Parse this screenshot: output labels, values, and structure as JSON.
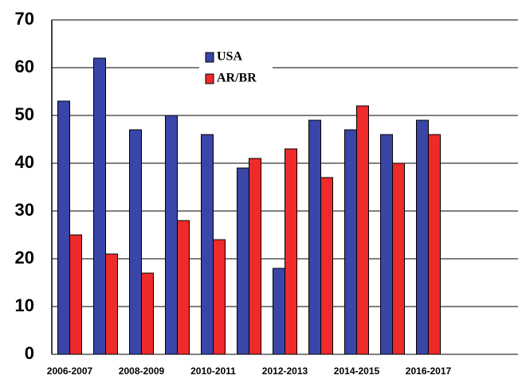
{
  "chart_data": {
    "type": "bar",
    "categories": [
      "2006-2007",
      null,
      "2008-2009",
      null,
      "2010-2011",
      null,
      "2012-2013",
      null,
      "2014-2015",
      null,
      "2016-2017",
      null,
      null
    ],
    "series": [
      {
        "name": "USA",
        "color": "#3a45a8",
        "values": [
          53,
          62,
          47,
          50,
          46,
          39,
          18,
          49,
          47,
          46,
          49,
          null,
          null
        ]
      },
      {
        "name": "AR/BR",
        "color": "#ee2a2a",
        "values": [
          25,
          21,
          17,
          28,
          24,
          41,
          43,
          37,
          52,
          40,
          46,
          null,
          null
        ]
      }
    ],
    "ylim": [
      0,
      70
    ],
    "yticks": [
      0,
      10,
      20,
      30,
      40,
      50,
      60,
      70
    ],
    "grid": true
  }
}
